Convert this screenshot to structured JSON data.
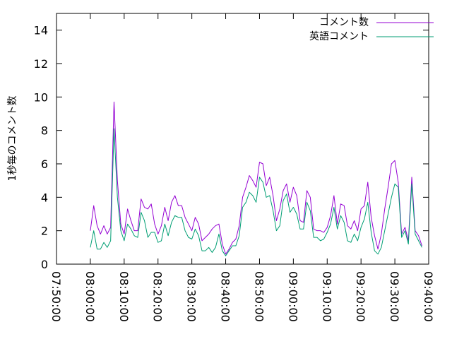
{
  "chart_data": {
    "type": "line",
    "title": "",
    "xlabel": "",
    "ylabel": "1秒毎のコメント数",
    "ylim": [
      0,
      15
    ],
    "yticks": [
      0,
      2,
      4,
      6,
      8,
      10,
      12,
      14
    ],
    "xlim": [
      "07:50:00",
      "09:40:00"
    ],
    "xticks": [
      "07:50:00",
      "08:00:00",
      "08:10:00",
      "08:20:00",
      "08:30:00",
      "08:40:00",
      "08:50:00",
      "09:00:00",
      "09:10:00",
      "09:20:00",
      "09:30:00",
      "09:40:00"
    ],
    "grid": false,
    "legend_position": "top-right",
    "series": [
      {
        "name": "コメント数",
        "color": "#9400d3",
        "points": [
          [
            "08:00:00",
            2.0
          ],
          [
            "08:01:00",
            3.5
          ],
          [
            "08:02:00",
            2.3
          ],
          [
            "08:03:00",
            1.8
          ],
          [
            "08:04:00",
            2.3
          ],
          [
            "08:05:00",
            1.8
          ],
          [
            "08:06:00",
            2.2
          ],
          [
            "08:07:00",
            9.7
          ],
          [
            "08:08:00",
            5.0
          ],
          [
            "08:09:00",
            2.4
          ],
          [
            "08:10:00",
            1.8
          ],
          [
            "08:11:00",
            3.3
          ],
          [
            "08:12:00",
            2.6
          ],
          [
            "08:13:00",
            2.0
          ],
          [
            "08:14:00",
            2.0
          ],
          [
            "08:15:00",
            3.9
          ],
          [
            "08:16:00",
            3.4
          ],
          [
            "08:17:00",
            3.3
          ],
          [
            "08:18:00",
            3.6
          ],
          [
            "08:19:00",
            2.4
          ],
          [
            "08:20:00",
            1.8
          ],
          [
            "08:21:00",
            2.3
          ],
          [
            "08:22:00",
            3.4
          ],
          [
            "08:23:00",
            2.6
          ],
          [
            "08:24:00",
            3.7
          ],
          [
            "08:25:00",
            4.1
          ],
          [
            "08:26:00",
            3.5
          ],
          [
            "08:27:00",
            3.5
          ],
          [
            "08:28:00",
            2.8
          ],
          [
            "08:29:00",
            2.4
          ],
          [
            "08:30:00",
            2.0
          ],
          [
            "08:31:00",
            2.8
          ],
          [
            "08:32:00",
            2.4
          ],
          [
            "08:33:00",
            1.4
          ],
          [
            "08:34:00",
            1.6
          ],
          [
            "08:35:00",
            1.8
          ],
          [
            "08:36:00",
            2.1
          ],
          [
            "08:37:00",
            2.3
          ],
          [
            "08:38:00",
            2.4
          ],
          [
            "08:39:00",
            1.2
          ],
          [
            "08:40:00",
            0.6
          ],
          [
            "08:41:00",
            0.9
          ],
          [
            "08:42:00",
            1.3
          ],
          [
            "08:43:00",
            1.5
          ],
          [
            "08:44:00",
            2.3
          ],
          [
            "08:45:00",
            4.0
          ],
          [
            "08:46:00",
            4.6
          ],
          [
            "08:47:00",
            5.3
          ],
          [
            "08:48:00",
            5.0
          ],
          [
            "08:49:00",
            4.6
          ],
          [
            "08:50:00",
            6.1
          ],
          [
            "08:51:00",
            6.0
          ],
          [
            "08:52:00",
            4.7
          ],
          [
            "08:53:00",
            5.2
          ],
          [
            "08:54:00",
            4.1
          ],
          [
            "08:55:00",
            2.6
          ],
          [
            "08:56:00",
            3.3
          ],
          [
            "08:57:00",
            4.4
          ],
          [
            "08:58:00",
            4.8
          ],
          [
            "08:59:00",
            3.7
          ],
          [
            "09:00:00",
            4.6
          ],
          [
            "09:01:00",
            4.1
          ],
          [
            "09:02:00",
            2.6
          ],
          [
            "09:03:00",
            2.5
          ],
          [
            "09:04:00",
            4.4
          ],
          [
            "09:05:00",
            4.0
          ],
          [
            "09:06:00",
            2.1
          ],
          [
            "09:07:00",
            2.0
          ],
          [
            "09:08:00",
            2.0
          ],
          [
            "09:09:00",
            1.9
          ],
          [
            "09:10:00",
            2.2
          ],
          [
            "09:11:00",
            2.9
          ],
          [
            "09:12:00",
            4.1
          ],
          [
            "09:13:00",
            2.4
          ],
          [
            "09:14:00",
            3.6
          ],
          [
            "09:15:00",
            3.5
          ],
          [
            "09:16:00",
            2.3
          ],
          [
            "09:17:00",
            2.1
          ],
          [
            "09:18:00",
            2.6
          ],
          [
            "09:19:00",
            2.0
          ],
          [
            "09:20:00",
            3.3
          ],
          [
            "09:21:00",
            3.5
          ],
          [
            "09:22:00",
            4.9
          ],
          [
            "09:23:00",
            2.8
          ],
          [
            "09:24:00",
            1.7
          ],
          [
            "09:25:00",
            0.9
          ],
          [
            "09:26:00",
            1.8
          ],
          [
            "09:27:00",
            3.3
          ],
          [
            "09:28:00",
            4.6
          ],
          [
            "09:29:00",
            6.0
          ],
          [
            "09:30:00",
            6.2
          ],
          [
            "09:31:00",
            4.9
          ],
          [
            "09:32:00",
            1.8
          ],
          [
            "09:33:00",
            2.2
          ],
          [
            "09:34:00",
            1.4
          ],
          [
            "09:35:00",
            5.2
          ],
          [
            "09:36:00",
            2.0
          ],
          [
            "09:37:00",
            1.7
          ],
          [
            "09:38:00",
            1.1
          ]
        ]
      },
      {
        "name": "英語コメント",
        "color": "#009e73",
        "points": [
          [
            "08:00:00",
            1.0
          ],
          [
            "08:01:00",
            2.0
          ],
          [
            "08:02:00",
            0.9
          ],
          [
            "08:03:00",
            0.9
          ],
          [
            "08:04:00",
            1.3
          ],
          [
            "08:05:00",
            1.0
          ],
          [
            "08:06:00",
            1.4
          ],
          [
            "08:07:00",
            8.1
          ],
          [
            "08:08:00",
            4.0
          ],
          [
            "08:09:00",
            2.0
          ],
          [
            "08:10:00",
            1.4
          ],
          [
            "08:11:00",
            2.4
          ],
          [
            "08:12:00",
            2.1
          ],
          [
            "08:13:00",
            1.7
          ],
          [
            "08:14:00",
            1.6
          ],
          [
            "08:15:00",
            3.1
          ],
          [
            "08:16:00",
            2.6
          ],
          [
            "08:17:00",
            1.6
          ],
          [
            "08:18:00",
            1.9
          ],
          [
            "08:19:00",
            1.9
          ],
          [
            "08:20:00",
            1.3
          ],
          [
            "08:21:00",
            1.4
          ],
          [
            "08:22:00",
            2.4
          ],
          [
            "08:23:00",
            1.7
          ],
          [
            "08:24:00",
            2.5
          ],
          [
            "08:25:00",
            2.9
          ],
          [
            "08:26:00",
            2.8
          ],
          [
            "08:27:00",
            2.8
          ],
          [
            "08:28:00",
            2.0
          ],
          [
            "08:29:00",
            1.6
          ],
          [
            "08:30:00",
            1.5
          ],
          [
            "08:31:00",
            2.1
          ],
          [
            "08:32:00",
            1.7
          ],
          [
            "08:33:00",
            0.8
          ],
          [
            "08:34:00",
            0.8
          ],
          [
            "08:35:00",
            1.0
          ],
          [
            "08:36:00",
            0.7
          ],
          [
            "08:37:00",
            1.0
          ],
          [
            "08:38:00",
            1.8
          ],
          [
            "08:39:00",
            0.8
          ],
          [
            "08:40:00",
            0.5
          ],
          [
            "08:41:00",
            0.8
          ],
          [
            "08:42:00",
            1.1
          ],
          [
            "08:43:00",
            1.1
          ],
          [
            "08:44:00",
            1.7
          ],
          [
            "08:45:00",
            3.4
          ],
          [
            "08:46:00",
            3.7
          ],
          [
            "08:47:00",
            4.3
          ],
          [
            "08:48:00",
            4.1
          ],
          [
            "08:49:00",
            3.7
          ],
          [
            "08:50:00",
            5.2
          ],
          [
            "08:51:00",
            4.9
          ],
          [
            "08:52:00",
            4.0
          ],
          [
            "08:53:00",
            4.1
          ],
          [
            "08:54:00",
            3.2
          ],
          [
            "08:55:00",
            2.0
          ],
          [
            "08:56:00",
            2.3
          ],
          [
            "08:57:00",
            3.8
          ],
          [
            "08:58:00",
            4.2
          ],
          [
            "08:59:00",
            3.1
          ],
          [
            "09:00:00",
            3.4
          ],
          [
            "09:01:00",
            3.0
          ],
          [
            "09:02:00",
            2.1
          ],
          [
            "09:03:00",
            2.1
          ],
          [
            "09:04:00",
            3.7
          ],
          [
            "09:05:00",
            3.2
          ],
          [
            "09:06:00",
            1.6
          ],
          [
            "09:07:00",
            1.6
          ],
          [
            "09:08:00",
            1.4
          ],
          [
            "09:09:00",
            1.5
          ],
          [
            "09:10:00",
            1.9
          ],
          [
            "09:11:00",
            2.4
          ],
          [
            "09:12:00",
            3.4
          ],
          [
            "09:13:00",
            2.1
          ],
          [
            "09:14:00",
            2.9
          ],
          [
            "09:15:00",
            2.5
          ],
          [
            "09:16:00",
            1.4
          ],
          [
            "09:17:00",
            1.3
          ],
          [
            "09:18:00",
            1.8
          ],
          [
            "09:19:00",
            1.4
          ],
          [
            "09:20:00",
            2.2
          ],
          [
            "09:21:00",
            2.7
          ],
          [
            "09:22:00",
            3.7
          ],
          [
            "09:23:00",
            1.9
          ],
          [
            "09:24:00",
            0.8
          ],
          [
            "09:25:00",
            0.6
          ],
          [
            "09:26:00",
            1.0
          ],
          [
            "09:27:00",
            2.0
          ],
          [
            "09:28:00",
            3.0
          ],
          [
            "09:29:00",
            4.0
          ],
          [
            "09:30:00",
            4.8
          ],
          [
            "09:31:00",
            4.6
          ],
          [
            "09:32:00",
            1.6
          ],
          [
            "09:33:00",
            2.0
          ],
          [
            "09:34:00",
            1.2
          ],
          [
            "09:35:00",
            4.8
          ],
          [
            "09:36:00",
            1.8
          ],
          [
            "09:37:00",
            1.4
          ],
          [
            "09:38:00",
            1.0
          ]
        ]
      }
    ]
  }
}
